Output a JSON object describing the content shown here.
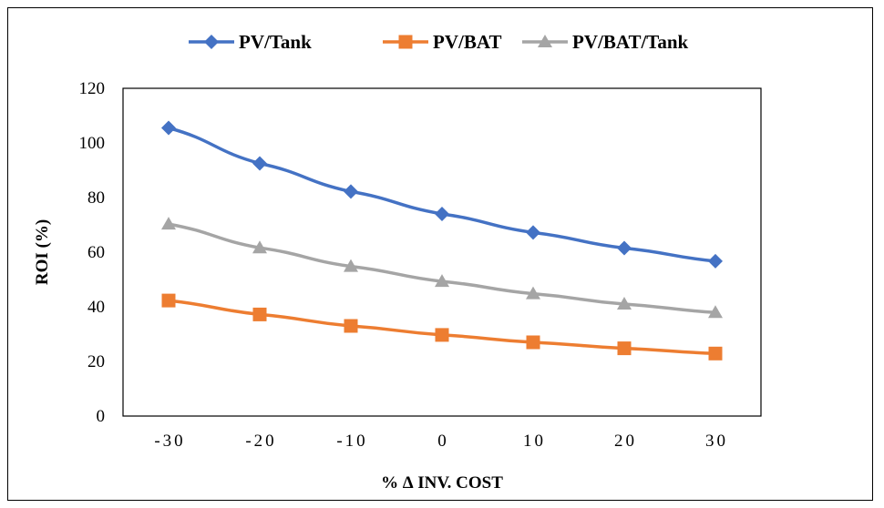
{
  "chart_data": {
    "type": "line",
    "title": "",
    "xlabel": "% ∆ INV. COST",
    "ylabel": "ROI  (%)",
    "categories": [
      "-30",
      "-20",
      "-10",
      "0",
      "10",
      "20",
      "30"
    ],
    "ylim": [
      0,
      120
    ],
    "yticks": [
      "0",
      "20",
      "40",
      "60",
      "80",
      "100",
      "120"
    ],
    "grid": false,
    "legend_position": "top",
    "series": [
      {
        "name": "PV/Tank",
        "color": "#4472C4",
        "marker": "diamond",
        "values": [
          105.5,
          92.5,
          82.2,
          74.0,
          67.2,
          61.5,
          56.7
        ]
      },
      {
        "name": "PV/BAT",
        "color": "#ED7D31",
        "marker": "square",
        "values": [
          42.3,
          37.2,
          33.0,
          29.7,
          27.0,
          24.8,
          22.9
        ]
      },
      {
        "name": "PV/BAT/Tank",
        "color": "#A5A5A5",
        "marker": "triangle",
        "values": [
          70.3,
          61.6,
          54.8,
          49.3,
          44.8,
          41.0,
          37.9
        ]
      }
    ]
  }
}
